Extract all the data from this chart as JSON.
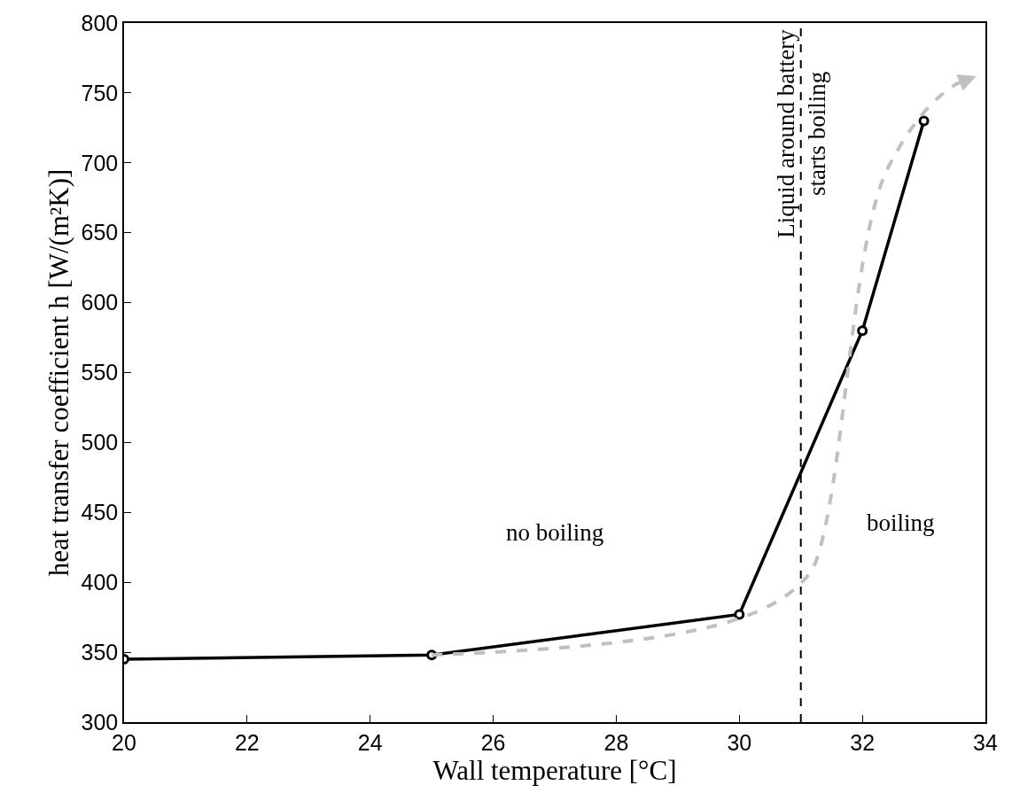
{
  "chart_data": {
    "type": "line",
    "xlabel": "Wall temperature [°C]",
    "ylabel": "heat transfer coefficient h [W/(m²K)]",
    "x": [
      20,
      25,
      30,
      32,
      33
    ],
    "series": [
      {
        "color": "#000000",
        "values": [
          345,
          348,
          377,
          580,
          730
        ],
        "marker": "circle",
        "line_style": "solid"
      }
    ],
    "xlim": [
      20,
      34
    ],
    "xticks": [
      20,
      22,
      24,
      26,
      28,
      30,
      32,
      34
    ],
    "ylim": [
      300,
      800
    ],
    "yticks": [
      300,
      350,
      400,
      450,
      500,
      550,
      600,
      650,
      700,
      750,
      800
    ],
    "ref_lines": [
      {
        "axis": "x",
        "value": 31,
        "label": "Liquid around battery\nstarts boiling",
        "color": "#000000",
        "line_style": "dashed"
      }
    ],
    "annotations": [
      "no boiling",
      "boiling"
    ]
  }
}
